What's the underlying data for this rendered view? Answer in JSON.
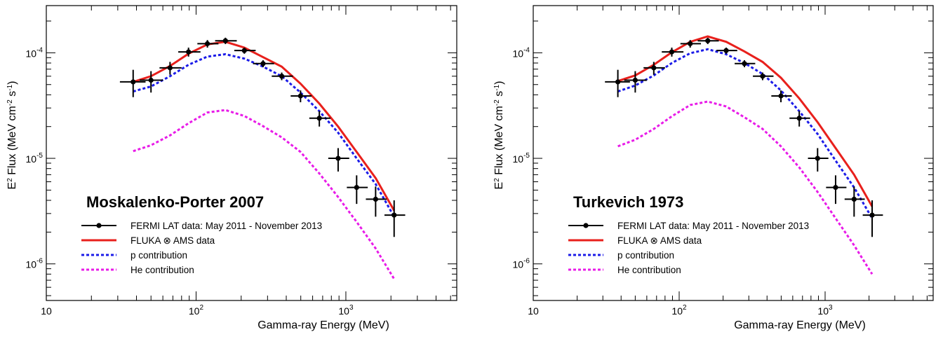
{
  "chart_data": [
    {
      "type": "line",
      "panel_title": "Moskalenko-Porter 2007",
      "xlabel": "Gamma-ray Energy (MeV)",
      "ylabel": "E2 Flux (MeV cm-2 s-1)",
      "xscale": "log",
      "yscale": "log",
      "xlim": [
        10,
        5500
      ],
      "ylim": [
        4.5e-07,
        0.00028
      ],
      "x_tick_labels": [
        "10",
        "10^2",
        "10^3"
      ],
      "y_tick_labels": [
        "10^-6",
        "10^-5",
        "10^-4"
      ],
      "legend_position": "bottom-left",
      "fermi": {
        "name": "FERMI LAT data: May 2011 - November 2013",
        "points": [
          {
            "x": 38,
            "y": 5.3e-05,
            "xerr": [
              7,
              8
            ],
            "yerr": [
              1.5e-05,
              1.6e-05
            ]
          },
          {
            "x": 50,
            "y": 5.5e-05,
            "xerr": [
              8,
              10
            ],
            "yerr": [
              1.3e-05,
              1.2e-05
            ]
          },
          {
            "x": 67,
            "y": 7.2e-05,
            "xerr": [
              10,
              13
            ],
            "yerr": [
              1e-05,
              1e-05
            ]
          },
          {
            "x": 89,
            "y": 0.000102,
            "xerr": [
              13,
              18
            ],
            "yerr": [
              1e-05,
              1e-05
            ]
          },
          {
            "x": 119,
            "y": 0.000122,
            "xerr": [
              17,
              22
            ],
            "yerr": [
              1e-05,
              1e-05
            ]
          },
          {
            "x": 157,
            "y": 0.00013,
            "xerr": [
              23,
              30
            ],
            "yerr": [
              9e-06,
              9e-06
            ]
          },
          {
            "x": 210,
            "y": 0.000105,
            "xerr": [
              30,
              40
            ],
            "yerr": [
              7e-06,
              7e-06
            ]
          },
          {
            "x": 280,
            "y": 7.9e-05,
            "xerr": [
              40,
              52
            ],
            "yerr": [
              6e-06,
              6e-06
            ]
          },
          {
            "x": 373,
            "y": 6e-05,
            "xerr": [
              53,
              70
            ],
            "yerr": [
              5e-06,
              5e-06
            ]
          },
          {
            "x": 498,
            "y": 3.9e-05,
            "xerr": [
              70,
              93
            ],
            "yerr": [
              5e-06,
              5e-06
            ]
          },
          {
            "x": 665,
            "y": 2.4e-05,
            "xerr": [
              95,
              125
            ],
            "yerr": [
              4e-06,
              4e-06
            ]
          },
          {
            "x": 888,
            "y": 1e-05,
            "xerr": [
              125,
              165
            ],
            "yerr": [
              2.5e-06,
              2.5e-06
            ]
          },
          {
            "x": 1180,
            "y": 5.3e-06,
            "xerr": [
              165,
              220
            ],
            "yerr": [
              1.6e-06,
              1.6e-06
            ]
          },
          {
            "x": 1580,
            "y": 4.1e-06,
            "xerr": [
              220,
              290
            ],
            "yerr": [
              1.3e-06,
              1.3e-06
            ]
          },
          {
            "x": 2100,
            "y": 2.9e-06,
            "xerr": [
              290,
              390
            ],
            "yerr": [
              1.1e-06,
              1.1e-06
            ]
          }
        ]
      },
      "series": [
        {
          "name": "FLUKA ⊗ AMS data",
          "color": "#e8201c",
          "dash": "solid",
          "x": [
            38,
            50,
            67,
            89,
            119,
            157,
            210,
            280,
            373,
            498,
            665,
            888,
            1180,
            1580,
            2100
          ],
          "y": [
            5.3e-05,
            6e-05,
            7.5e-05,
            9.8e-05,
            0.00012,
            0.000127,
            0.000112,
            9.1e-05,
            7.4e-05,
            5.1e-05,
            3.3e-05,
            2e-05,
            1.15e-05,
            6.5e-06,
            3.2e-06
          ]
        },
        {
          "name": "p contribution",
          "color": "#1c1ce8",
          "dash": "dotted",
          "x": [
            38,
            50,
            67,
            89,
            119,
            157,
            210,
            280,
            373,
            498,
            665,
            888,
            1180,
            1580,
            2100
          ],
          "y": [
            4.3e-05,
            4.8e-05,
            6e-05,
            7.7e-05,
            9.2e-05,
            9.7e-05,
            8.8e-05,
            7.4e-05,
            6e-05,
            4.2e-05,
            2.8e-05,
            1.75e-05,
            1e-05,
            5.7e-06,
            2.8e-06
          ]
        },
        {
          "name": "He contribution",
          "color": "#e81ce8",
          "dash": "dotted",
          "x": [
            38,
            50,
            67,
            89,
            119,
            157,
            210,
            280,
            373,
            498,
            665,
            888,
            1180,
            1580,
            2100
          ],
          "y": [
            1.17e-05,
            1.33e-05,
            1.65e-05,
            2.15e-05,
            2.72e-05,
            2.87e-05,
            2.52e-05,
            2.02e-05,
            1.58e-05,
            1.15e-05,
            7.2e-06,
            4.3e-06,
            2.5e-06,
            1.4e-06,
            7.2e-07
          ]
        }
      ]
    },
    {
      "type": "line",
      "panel_title": "Turkevich 1973",
      "xlabel": "Gamma-ray Energy (MeV)",
      "ylabel": "E2 Flux (MeV cm-2 s-1)",
      "xscale": "log",
      "yscale": "log",
      "xlim": [
        10,
        5500
      ],
      "ylim": [
        4.5e-07,
        0.00028
      ],
      "x_tick_labels": [
        "10",
        "10^2",
        "10^3"
      ],
      "y_tick_labels": [
        "10^-6",
        "10^-5",
        "10^-4"
      ],
      "legend_position": "bottom-left",
      "fermi": {
        "name": "FERMI LAT data: May 2011 - November 2013",
        "points": [
          {
            "x": 38,
            "y": 5.3e-05,
            "xerr": [
              7,
              8
            ],
            "yerr": [
              1.5e-05,
              1.6e-05
            ]
          },
          {
            "x": 50,
            "y": 5.5e-05,
            "xerr": [
              8,
              10
            ],
            "yerr": [
              1.3e-05,
              1.2e-05
            ]
          },
          {
            "x": 67,
            "y": 7.2e-05,
            "xerr": [
              10,
              13
            ],
            "yerr": [
              1e-05,
              1e-05
            ]
          },
          {
            "x": 89,
            "y": 0.000102,
            "xerr": [
              13,
              18
            ],
            "yerr": [
              1e-05,
              1e-05
            ]
          },
          {
            "x": 119,
            "y": 0.000122,
            "xerr": [
              17,
              22
            ],
            "yerr": [
              1e-05,
              1e-05
            ]
          },
          {
            "x": 157,
            "y": 0.00013,
            "xerr": [
              23,
              30
            ],
            "yerr": [
              9e-06,
              9e-06
            ]
          },
          {
            "x": 210,
            "y": 0.000105,
            "xerr": [
              30,
              40
            ],
            "yerr": [
              7e-06,
              7e-06
            ]
          },
          {
            "x": 280,
            "y": 7.9e-05,
            "xerr": [
              40,
              52
            ],
            "yerr": [
              6e-06,
              6e-06
            ]
          },
          {
            "x": 373,
            "y": 6e-05,
            "xerr": [
              53,
              70
            ],
            "yerr": [
              5e-06,
              5e-06
            ]
          },
          {
            "x": 498,
            "y": 3.9e-05,
            "xerr": [
              70,
              93
            ],
            "yerr": [
              5e-06,
              5e-06
            ]
          },
          {
            "x": 665,
            "y": 2.4e-05,
            "xerr": [
              95,
              125
            ],
            "yerr": [
              4e-06,
              4e-06
            ]
          },
          {
            "x": 888,
            "y": 1e-05,
            "xerr": [
              125,
              165
            ],
            "yerr": [
              2.5e-06,
              2.5e-06
            ]
          },
          {
            "x": 1180,
            "y": 5.3e-06,
            "xerr": [
              165,
              220
            ],
            "yerr": [
              1.6e-06,
              1.6e-06
            ]
          },
          {
            "x": 1580,
            "y": 4.1e-06,
            "xerr": [
              220,
              290
            ],
            "yerr": [
              1.3e-06,
              1.3e-06
            ]
          },
          {
            "x": 2100,
            "y": 2.9e-06,
            "xerr": [
              290,
              390
            ],
            "yerr": [
              1.1e-06,
              1.1e-06
            ]
          }
        ]
      },
      "series": [
        {
          "name": "FLUKA ⊗ AMS data",
          "color": "#e8201c",
          "dash": "solid",
          "x": [
            38,
            50,
            67,
            89,
            119,
            157,
            210,
            280,
            373,
            498,
            665,
            888,
            1180,
            1580,
            2100
          ],
          "y": [
            5.4e-05,
            6.1e-05,
            7.7e-05,
            0.000101,
            0.000127,
            0.000143,
            0.000127,
            0.000103,
            8.2e-05,
            5.8e-05,
            3.7e-05,
            2.2e-05,
            1.25e-05,
            7e-06,
            3.5e-06
          ]
        },
        {
          "name": "p contribution",
          "color": "#1c1ce8",
          "dash": "dotted",
          "x": [
            38,
            50,
            67,
            89,
            119,
            157,
            210,
            280,
            373,
            498,
            665,
            888,
            1180,
            1580,
            2100
          ],
          "y": [
            4.3e-05,
            4.9e-05,
            6.1e-05,
            8e-05,
            9.9e-05,
            0.000108,
            9.7e-05,
            8e-05,
            6.3e-05,
            4.4e-05,
            2.8e-05,
            1.7e-05,
            9.5e-06,
            5.3e-06,
            2.7e-06
          ]
        },
        {
          "name": "He contribution",
          "color": "#e81ce8",
          "dash": "dotted",
          "x": [
            38,
            50,
            67,
            89,
            119,
            157,
            210,
            280,
            373,
            498,
            665,
            888,
            1180,
            1580,
            2100
          ],
          "y": [
            1.3e-05,
            1.5e-05,
            1.9e-05,
            2.5e-05,
            3.2e-05,
            3.45e-05,
            3.1e-05,
            2.45e-05,
            1.9e-05,
            1.3e-05,
            8.2e-06,
            4.8e-06,
            2.7e-06,
            1.5e-06,
            8e-07
          ]
        }
      ]
    }
  ]
}
